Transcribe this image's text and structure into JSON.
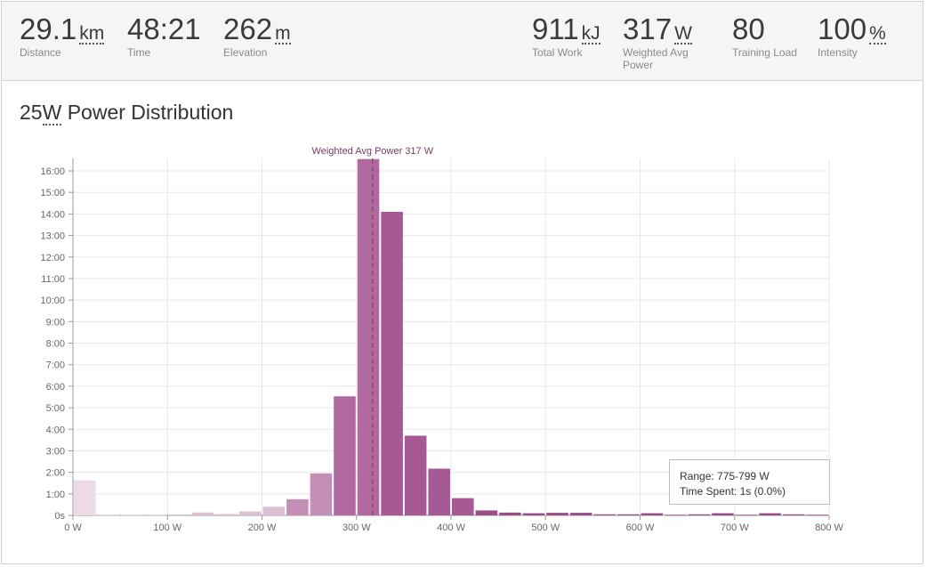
{
  "stats_left": [
    {
      "value": "29.1",
      "unit": "km",
      "label": "Distance"
    },
    {
      "value": "48:21",
      "unit": "",
      "label": "Time"
    },
    {
      "value": "262",
      "unit": "m",
      "label": "Elevation"
    }
  ],
  "stats_right": [
    {
      "value": "911",
      "unit": "kJ",
      "label": "Total Work"
    },
    {
      "value": "317",
      "unit": "W",
      "label": "Weighted Avg Power"
    },
    {
      "value": "80",
      "unit": "",
      "label": "Training Load"
    },
    {
      "value": "100",
      "unit": "%",
      "label": "Intensity"
    }
  ],
  "section": {
    "title_prefix": "25",
    "title_unit": "W",
    "title_rest": " Power Distribution"
  },
  "tooltip": {
    "range": "Range: 775-799 W",
    "time_spent": "Time Spent: 1s (0.0%)"
  },
  "chart_data": {
    "type": "bar",
    "title": "25W Power Distribution",
    "xlabel": "",
    "ylabel": "",
    "bin_width_w": 25,
    "x_range": [
      0,
      800
    ],
    "x_ticks": [
      "0 W",
      "100 W",
      "200 W",
      "300 W",
      "400 W",
      "500 W",
      "600 W",
      "700 W",
      "800 W"
    ],
    "y_range_minutes": [
      0,
      16.5
    ],
    "y_ticks": [
      "0s",
      "1:00",
      "2:00",
      "3:00",
      "4:00",
      "5:00",
      "6:00",
      "7:00",
      "8:00",
      "9:00",
      "10:00",
      "11:00",
      "12:00",
      "13:00",
      "14:00",
      "15:00",
      "16:00"
    ],
    "bin_starts_w": [
      0,
      25,
      50,
      75,
      100,
      125,
      150,
      175,
      200,
      225,
      250,
      275,
      300,
      325,
      350,
      375,
      400,
      425,
      450,
      475,
      500,
      525,
      550,
      575,
      600,
      625,
      650,
      675,
      700,
      725,
      750,
      775
    ],
    "values_minutes": [
      1.63,
      0.03,
      0.03,
      0.03,
      0.0,
      0.13,
      0.06,
      0.18,
      0.4,
      0.75,
      1.95,
      5.53,
      16.55,
      14.1,
      3.7,
      2.17,
      0.8,
      0.23,
      0.13,
      0.1,
      0.12,
      0.12,
      0.05,
      0.05,
      0.1,
      0.03,
      0.05,
      0.1,
      0.03,
      0.1,
      0.05,
      0.03
    ],
    "colors": {
      "low": "#ecdbe6",
      "mid": "#b06a9f",
      "high": "#9b4d88",
      "reference_line": "#7a3a6a"
    },
    "reference_line": {
      "value_w": 317,
      "label": "Weighted Avg Power 317 W"
    },
    "grid": true
  }
}
